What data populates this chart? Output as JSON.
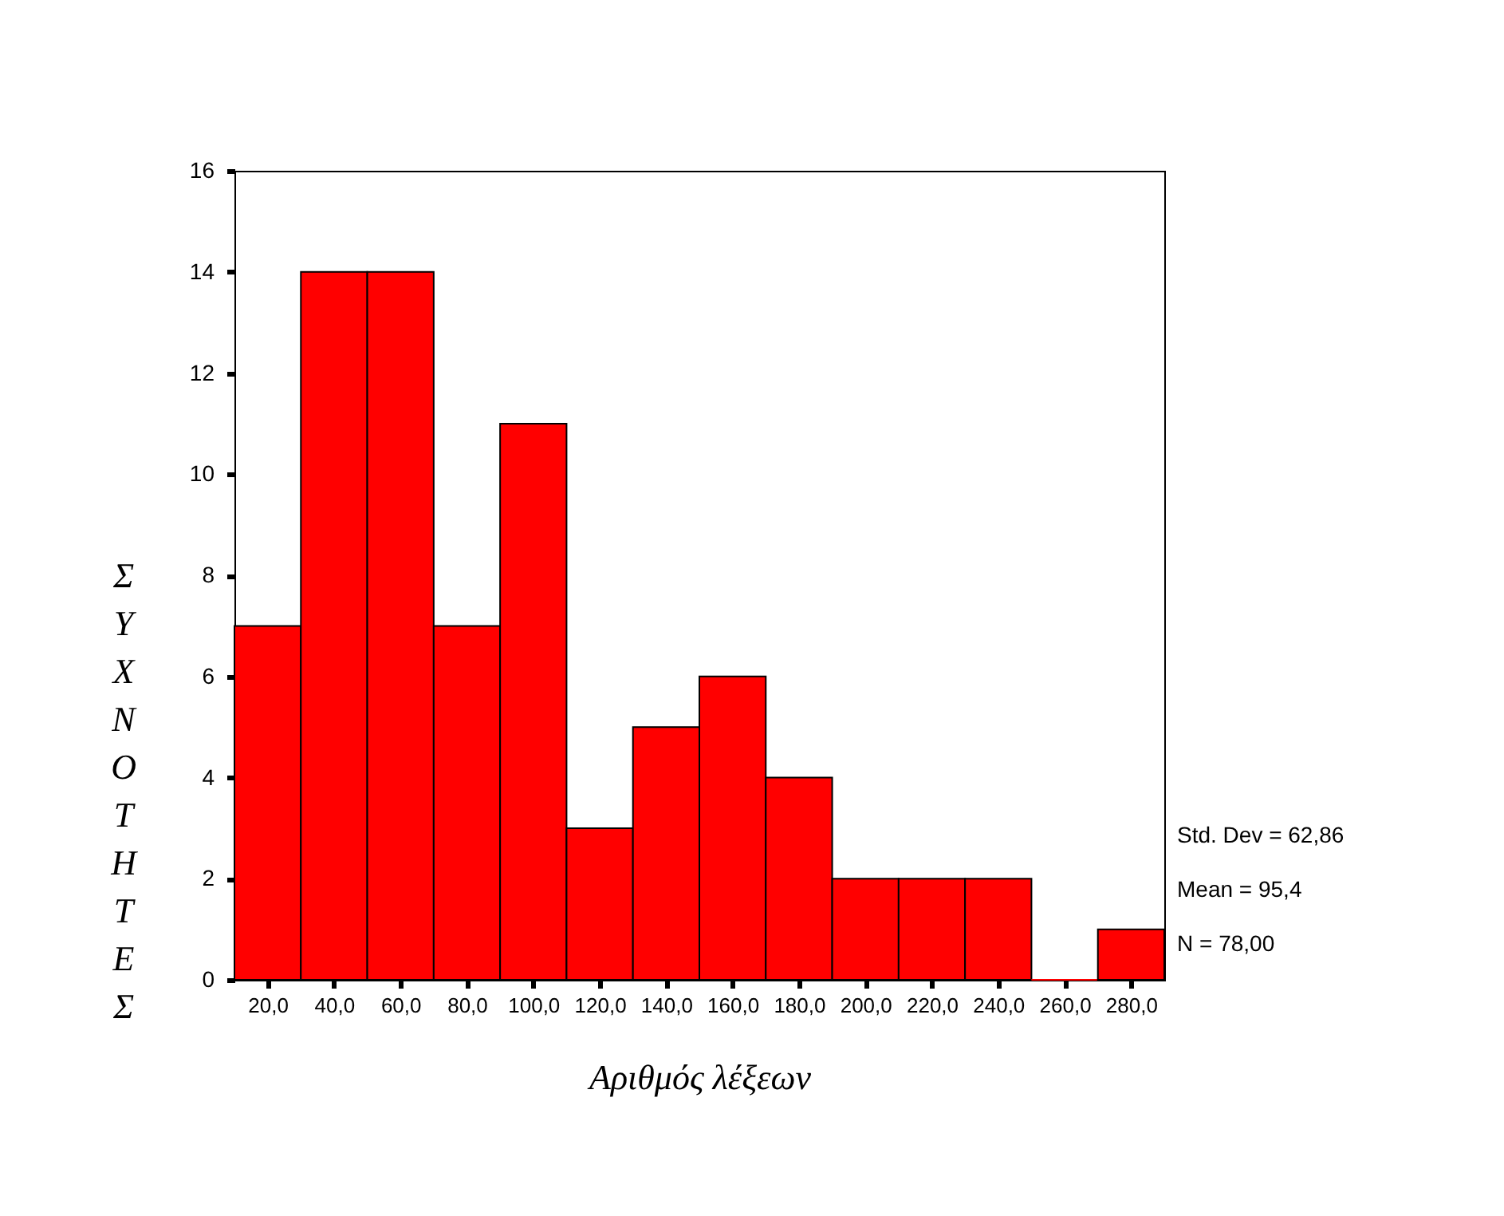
{
  "chart_data": {
    "type": "histogram",
    "xlabel": "Αριθμός λέξεων",
    "ylabel": "ΣΥΧΝΟΤΗΤΕΣ",
    "bins": [
      10,
      30,
      50,
      70,
      90,
      110,
      130,
      150,
      170,
      190,
      210,
      230,
      250,
      270,
      290
    ],
    "values": [
      7,
      14,
      14,
      7,
      11,
      3,
      5,
      6,
      4,
      2,
      2,
      2,
      0,
      1
    ],
    "color": "#ff0000",
    "xlim": [
      10,
      290
    ],
    "xticks": [
      {
        "value": 20,
        "label": "20,0"
      },
      {
        "value": 40,
        "label": "40,0"
      },
      {
        "value": 60,
        "label": "60,0"
      },
      {
        "value": 80,
        "label": "80,0"
      },
      {
        "value": 100,
        "label": "100,0"
      },
      {
        "value": 120,
        "label": "120,0"
      },
      {
        "value": 140,
        "label": "140,0"
      },
      {
        "value": 160,
        "label": "160,0"
      },
      {
        "value": 180,
        "label": "180,0"
      },
      {
        "value": 200,
        "label": "200,0"
      },
      {
        "value": 220,
        "label": "220,0"
      },
      {
        "value": 240,
        "label": "240,0"
      },
      {
        "value": 260,
        "label": "260,0"
      },
      {
        "value": 280,
        "label": "280,0"
      }
    ],
    "ylim": [
      0,
      16
    ],
    "yticks": [
      0,
      2,
      4,
      6,
      8,
      10,
      12,
      14,
      16
    ],
    "grid": false,
    "annotations": [
      "Std. Dev = 62,86",
      "Mean = 95,4",
      "N = 78,00"
    ]
  }
}
